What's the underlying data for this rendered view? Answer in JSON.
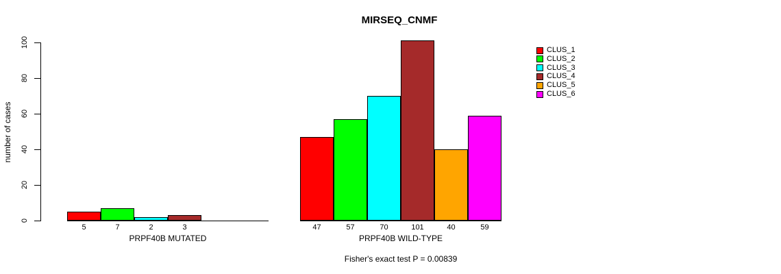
{
  "chart_data": {
    "type": "bar",
    "title": "MIRSEQ_CNMF",
    "ylabel": "number of cases",
    "xlabel": "",
    "ylim": [
      0,
      105
    ],
    "yticks": [
      0,
      20,
      40,
      60,
      80,
      100
    ],
    "grid": false,
    "legend_position": "right-outside",
    "clusters": [
      {
        "name": "CLUS_1",
        "color": "#FF0000"
      },
      {
        "name": "CLUS_2",
        "color": "#00FF00"
      },
      {
        "name": "CLUS_3",
        "color": "#00FFFF"
      },
      {
        "name": "CLUS_4",
        "color": "#A52A2A"
      },
      {
        "name": "CLUS_5",
        "color": "#FFA500"
      },
      {
        "name": "CLUS_6",
        "color": "#FF00FF"
      }
    ],
    "groups": [
      {
        "label": "PRPF40B MUTATED",
        "values": [
          5,
          7,
          2,
          3,
          0,
          0
        ],
        "bar_labels": [
          "5",
          "7",
          "2",
          "3",
          "",
          ""
        ]
      },
      {
        "label": "PRPF40B WILD-TYPE",
        "values": [
          47,
          57,
          70,
          101,
          40,
          59
        ],
        "bar_labels": [
          "47",
          "57",
          "70",
          "101",
          "40",
          "59"
        ]
      }
    ],
    "annotation": "Fisher's exact test P = 0.00839"
  }
}
